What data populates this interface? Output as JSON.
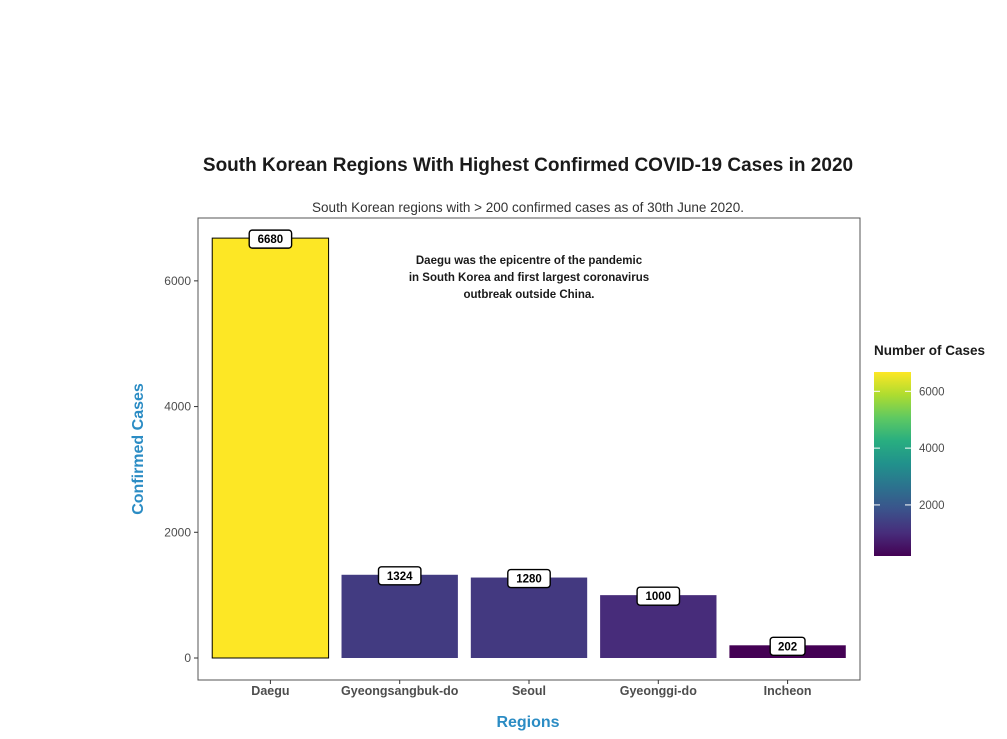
{
  "chart_data": {
    "type": "bar",
    "title": "South Korean Regions With Highest Confirmed COVID-19 Cases in 2020",
    "subtitle": "South Korean regions with > 200 confirmed cases as of 30th June 2020.",
    "xlabel": "Regions",
    "ylabel": "Confirmed Cases",
    "categories": [
      "Daegu",
      "Gyeongsangbuk-do",
      "Seoul",
      "Gyeonggi-do",
      "Incheon"
    ],
    "values": [
      6680,
      1324,
      1280,
      1000,
      202
    ],
    "data_labels": [
      "6680",
      "1324",
      "1280",
      "1000",
      "202"
    ],
    "ylim": [
      -350,
      7000
    ],
    "yticks": [
      0,
      2000,
      4000,
      6000
    ],
    "ytick_labels": [
      "0",
      "2000",
      "4000",
      "6000"
    ],
    "grid": false,
    "annotation": {
      "lines": [
        "Daegu was the epicentre of the pandemic",
        "in South Korea and first largest coronavirus",
        "outbreak outside China."
      ],
      "x_category": "Seoul",
      "y_value": 6000
    },
    "legend": {
      "title": "Number of Cases",
      "placement": "right",
      "type": "colorbar",
      "palette": "viridis",
      "range": [
        202,
        6680
      ],
      "ticks": [
        2000,
        4000,
        6000
      ],
      "tick_labels": [
        "2000",
        "4000",
        "6000"
      ]
    }
  },
  "colors": {
    "axis_title": "#2b8cc4",
    "bar_outline": "#000000",
    "panel_border": "#555555"
  }
}
